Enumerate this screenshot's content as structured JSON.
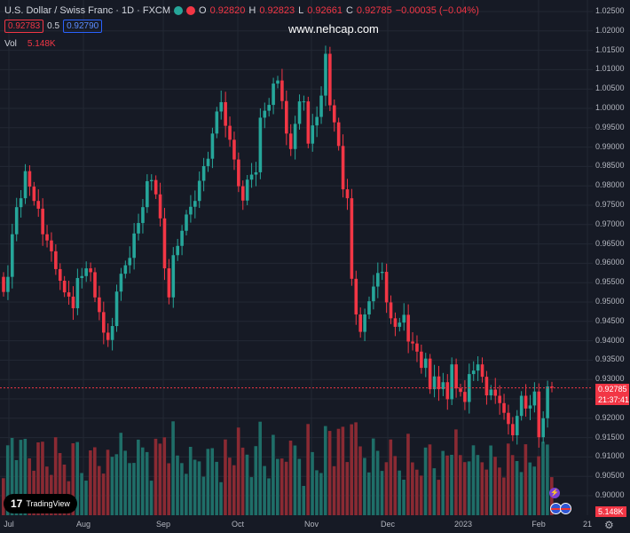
{
  "header": {
    "symbol": "U.S. Dollar / Swiss Franc · 1D · FXCM",
    "open_label": "O",
    "open": "0.92820",
    "high_label": "H",
    "high": "0.92823",
    "low_label": "L",
    "low": "0.92661",
    "close_label": "C",
    "close": "0.92785",
    "change": "−0.00035 (−0.04%)",
    "sell_price": "0.92783",
    "spread": "0.5",
    "buy_price": "0.92790",
    "volume_label": "Vol",
    "volume": "5.148K"
  },
  "watermark": "www.nehcap.com",
  "logo_text": "TradingView",
  "price_axis": {
    "labels": [
      "1.02500",
      "1.02000",
      "1.01500",
      "1.01000",
      "1.00500",
      "1.00000",
      "0.99500",
      "0.99000",
      "0.98500",
      "0.98000",
      "0.97500",
      "0.97000",
      "0.96500",
      "0.96000",
      "0.95500",
      "0.95000",
      "0.94500",
      "0.94000",
      "0.93500",
      "0.93000",
      "0.92500",
      "0.92000",
      "0.91500",
      "0.91000",
      "0.90500",
      "0.90000"
    ],
    "current_price": "0.92785",
    "countdown": "21:37:41",
    "volume_tag": "5.148K"
  },
  "time_axis": {
    "labels": [
      "Jul",
      "Aug",
      "Sep",
      "Oct",
      "Nov",
      "Dec",
      "2023",
      "Feb",
      "21"
    ]
  },
  "colors": {
    "up": "#26a69a",
    "down": "#f23645",
    "bg": "#161a25",
    "text": "#d1d4dc"
  },
  "chart_data": {
    "type": "candlestick",
    "ylim": [
      0.9,
      1.025
    ],
    "series": [
      {
        "name": "O",
        "values": [
          0.9565,
          0.9526,
          0.9565,
          0.9675,
          0.9745,
          0.9768,
          0.9838,
          0.9798,
          0.9761,
          0.9741,
          0.9675,
          0.9659,
          0.9631,
          0.9585,
          0.9555,
          0.9525,
          0.9514,
          0.9484,
          0.9562,
          0.9567,
          0.9587,
          0.9577,
          0.9512,
          0.9474,
          0.9421,
          0.9402,
          0.9438,
          0.9527,
          0.9573,
          0.9595,
          0.9614,
          0.9677,
          0.9704,
          0.9745,
          0.9812,
          0.9815,
          0.9778,
          0.9716,
          0.9587,
          0.9512,
          0.9621,
          0.9645,
          0.9684,
          0.9726,
          0.9746,
          0.9761,
          0.9813,
          0.9851,
          0.987,
          0.9935,
          0.9992,
          1.0016,
          0.9955,
          0.9919,
          0.9868,
          0.9799,
          0.9762,
          0.9816,
          0.9829,
          0.9835,
          0.9976,
          0.9994,
          1.0009,
          1.0064,
          1.0072,
          1.0019,
          0.9935,
          0.9895,
          0.996,
          1.0018,
          1.0018,
          0.9909,
          0.9956,
          0.9978,
          1.0033,
          1.0141,
          1.0008,
          0.9964,
          0.9903,
          0.9791,
          0.9768,
          0.956,
          0.9468,
          0.9423,
          0.9468,
          0.9502,
          0.954,
          0.9575,
          0.9578,
          0.9499,
          0.9458,
          0.9436,
          0.9447,
          0.9467,
          0.9398,
          0.9393,
          0.9372,
          0.933,
          0.9354,
          0.9275,
          0.9308,
          0.9275,
          0.9293,
          0.9249,
          0.9339,
          0.9277,
          0.9268,
          0.9242,
          0.9314,
          0.9323,
          0.9339,
          0.9307,
          0.9259,
          0.9274,
          0.9258,
          0.9239,
          0.9214,
          0.9185,
          0.9156,
          0.9206,
          0.9258,
          0.9225,
          0.9233,
          0.9269,
          0.9151,
          0.92,
          0.9282
        ]
      },
      {
        "name": "C",
        "values": [
          0.9526,
          0.9565,
          0.9675,
          0.9745,
          0.9768,
          0.9838,
          0.9798,
          0.9761,
          0.9741,
          0.9675,
          0.9659,
          0.9631,
          0.9585,
          0.9555,
          0.9525,
          0.9514,
          0.9484,
          0.9562,
          0.9567,
          0.9587,
          0.9577,
          0.9512,
          0.9474,
          0.9421,
          0.9402,
          0.9438,
          0.9527,
          0.9573,
          0.9595,
          0.9614,
          0.9677,
          0.9704,
          0.9745,
          0.9812,
          0.9815,
          0.9778,
          0.9716,
          0.9587,
          0.9512,
          0.9621,
          0.9645,
          0.9684,
          0.9726,
          0.9746,
          0.9761,
          0.9813,
          0.9851,
          0.987,
          0.9935,
          0.9992,
          1.0016,
          0.9955,
          0.9919,
          0.9868,
          0.9799,
          0.9762,
          0.9816,
          0.9829,
          0.9835,
          0.9976,
          0.9994,
          1.0009,
          1.0064,
          1.0072,
          1.0019,
          0.9935,
          0.9895,
          0.996,
          1.0018,
          1.0018,
          0.9909,
          0.9956,
          0.9978,
          1.0033,
          1.0141,
          1.0008,
          0.9964,
          0.9903,
          0.9791,
          0.9768,
          0.956,
          0.9468,
          0.9423,
          0.9468,
          0.9502,
          0.954,
          0.9575,
          0.9578,
          0.9499,
          0.9458,
          0.9436,
          0.9447,
          0.9467,
          0.9398,
          0.9393,
          0.9372,
          0.933,
          0.9354,
          0.9275,
          0.9308,
          0.9275,
          0.9293,
          0.9249,
          0.9339,
          0.9277,
          0.9268,
          0.9242,
          0.9314,
          0.9323,
          0.9339,
          0.9307,
          0.9259,
          0.9274,
          0.9258,
          0.9239,
          0.9214,
          0.9185,
          0.9156,
          0.9206,
          0.9258,
          0.9225,
          0.9233,
          0.9269,
          0.9151,
          0.92,
          0.9282,
          0.9279
        ]
      }
    ]
  }
}
